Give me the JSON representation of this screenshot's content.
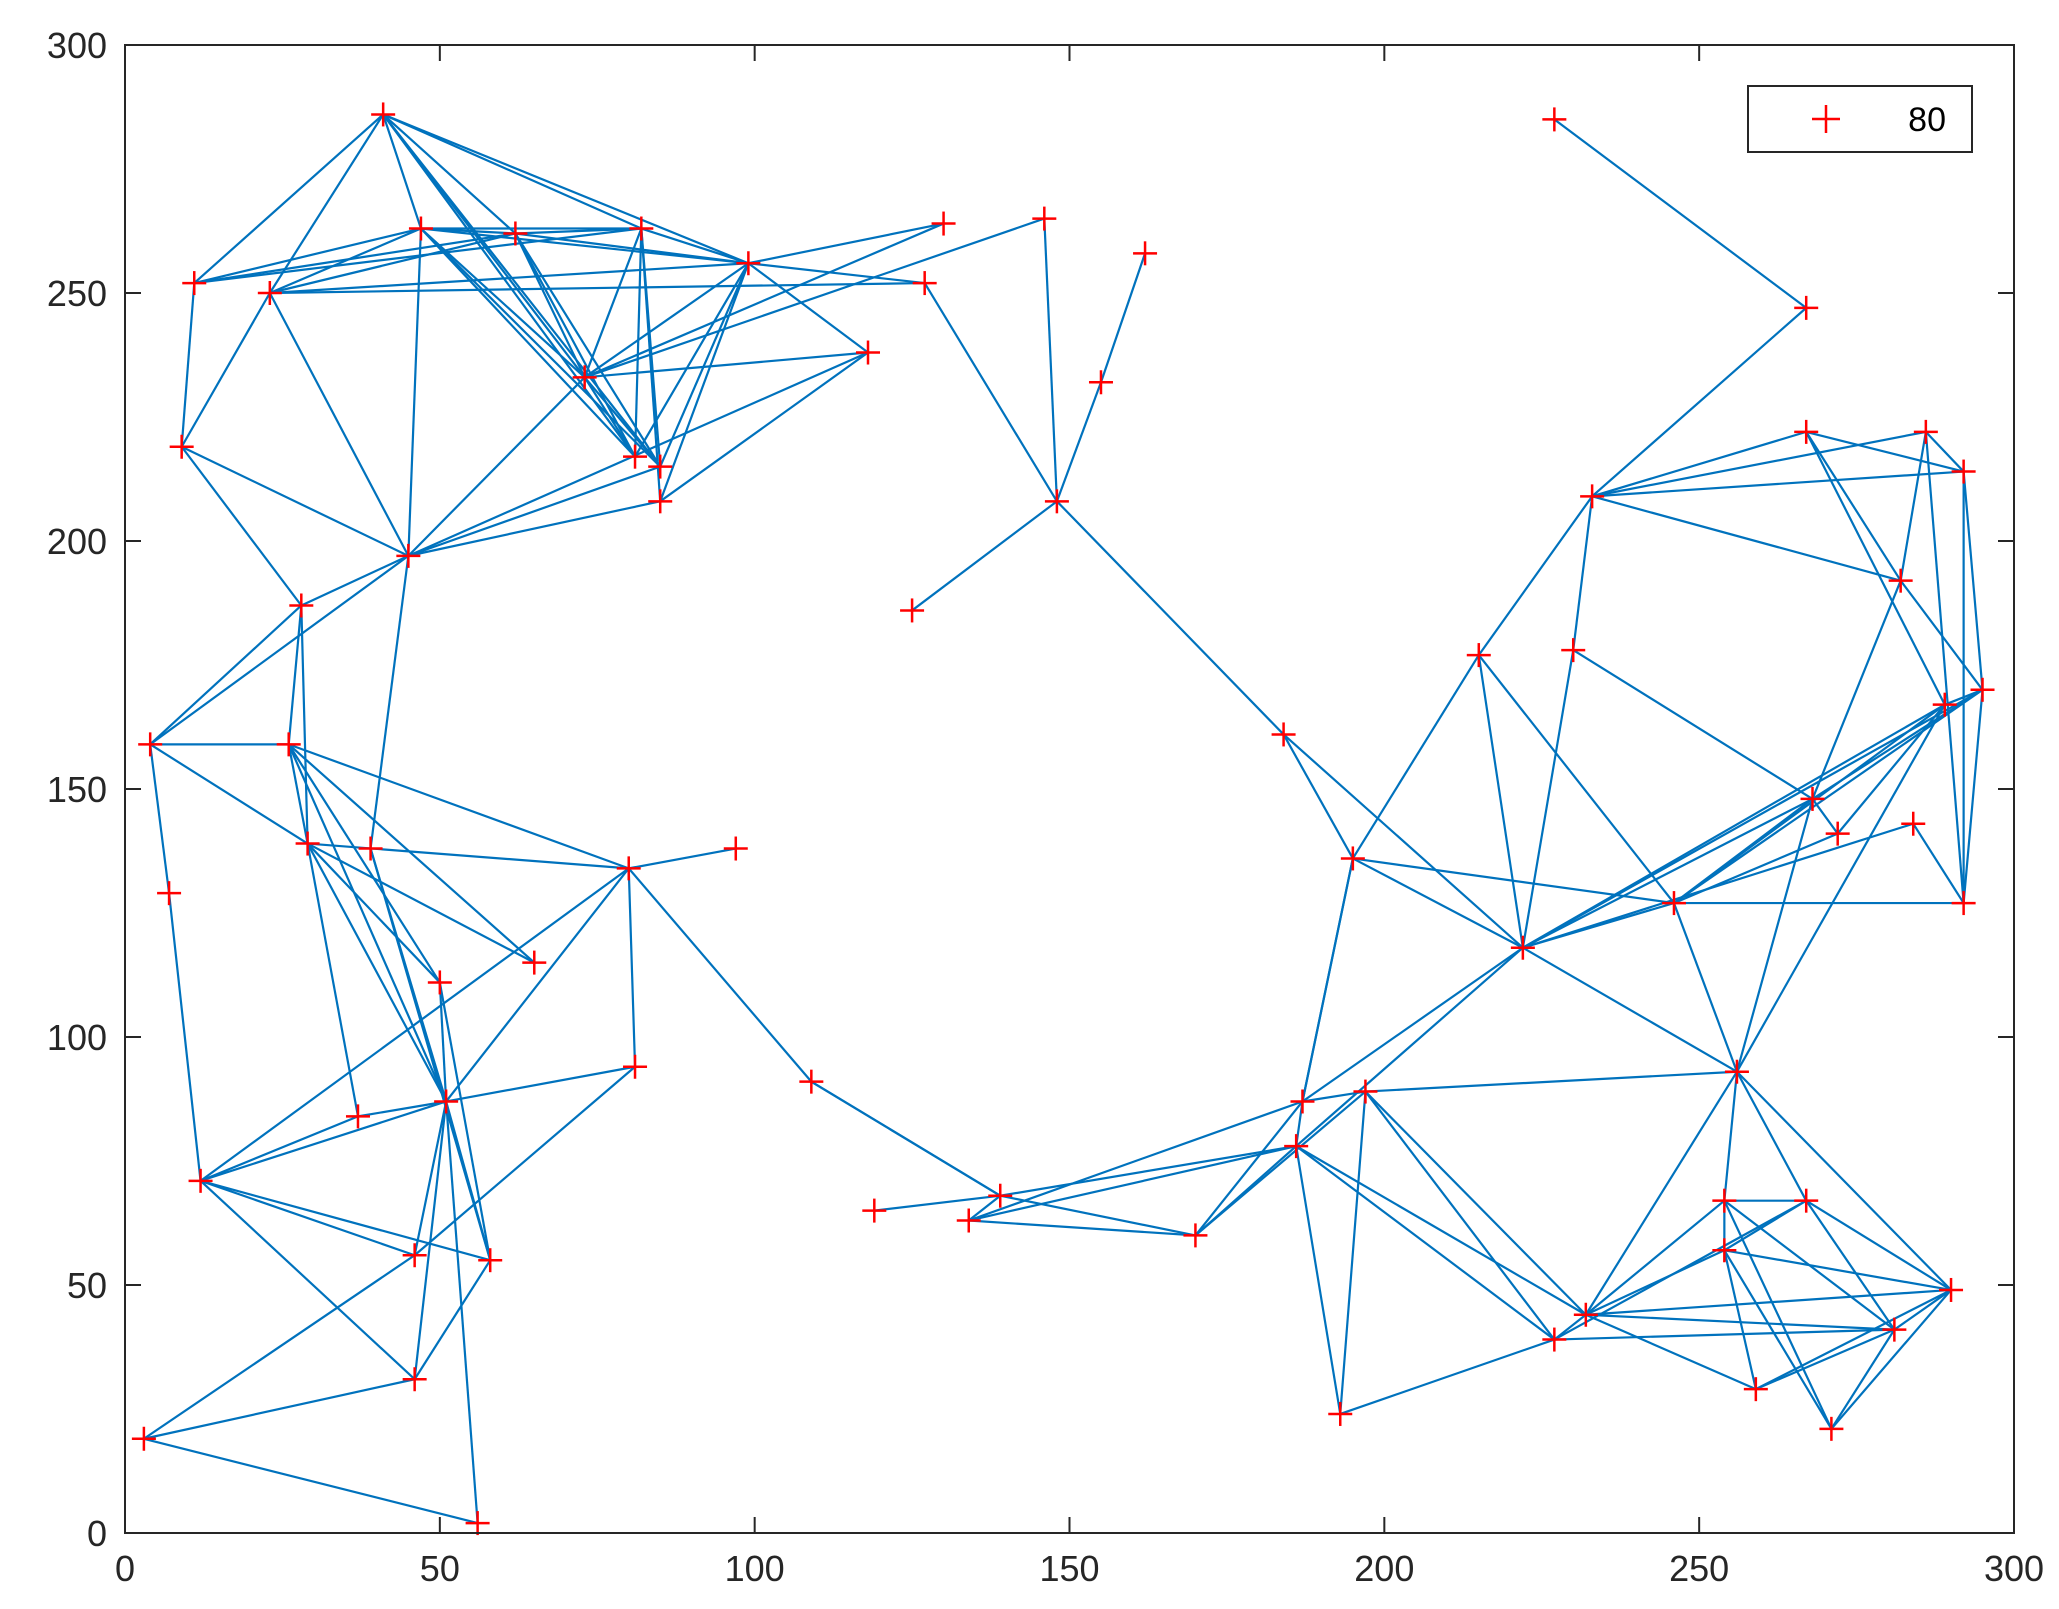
{
  "chart_data": {
    "type": "scatter",
    "title": "",
    "xlabel": "",
    "ylabel": "",
    "xlim": [
      0,
      300
    ],
    "ylim": [
      0,
      300
    ],
    "xticks": [
      0,
      50,
      100,
      150,
      200,
      250,
      300
    ],
    "yticks": [
      0,
      50,
      100,
      150,
      200,
      250,
      300
    ],
    "grid": false,
    "legend": {
      "placement": "top-right",
      "entries": [
        "80"
      ]
    },
    "colors": {
      "marker": "#ff0000",
      "edge": "#0072bd",
      "axis": "#262626"
    },
    "points": [
      [
        41,
        286
      ],
      [
        47,
        263
      ],
      [
        62,
        262
      ],
      [
        82,
        263
      ],
      [
        11,
        252
      ],
      [
        23,
        250
      ],
      [
        99,
        256
      ],
      [
        130,
        264
      ],
      [
        146,
        265
      ],
      [
        127,
        252
      ],
      [
        162,
        258
      ],
      [
        118,
        238
      ],
      [
        73,
        233
      ],
      [
        155,
        232
      ],
      [
        9,
        219
      ],
      [
        81,
        217
      ],
      [
        85,
        215
      ],
      [
        85,
        208
      ],
      [
        148,
        208
      ],
      [
        45,
        197
      ],
      [
        28,
        187
      ],
      [
        125,
        186
      ],
      [
        4,
        159
      ],
      [
        26,
        159
      ],
      [
        29,
        139
      ],
      [
        39,
        138
      ],
      [
        80,
        134
      ],
      [
        97,
        138
      ],
      [
        7,
        129
      ],
      [
        65,
        115
      ],
      [
        50,
        111
      ],
      [
        81,
        94
      ],
      [
        109,
        91
      ],
      [
        51,
        87
      ],
      [
        37,
        84
      ],
      [
        12,
        71
      ],
      [
        46,
        56
      ],
      [
        58,
        55
      ],
      [
        46,
        31
      ],
      [
        3,
        19
      ],
      [
        56,
        2
      ],
      [
        119,
        65
      ],
      [
        134,
        63
      ],
      [
        139,
        68
      ],
      [
        170,
        60
      ],
      [
        184,
        161
      ],
      [
        195,
        136
      ],
      [
        215,
        177
      ],
      [
        230,
        178
      ],
      [
        222,
        118
      ],
      [
        227,
        285
      ],
      [
        267,
        247
      ],
      [
        233,
        209
      ],
      [
        267,
        222
      ],
      [
        286,
        222
      ],
      [
        292,
        214
      ],
      [
        282,
        192
      ],
      [
        295,
        170
      ],
      [
        289,
        167
      ],
      [
        268,
        148
      ],
      [
        272,
        141
      ],
      [
        284,
        143
      ],
      [
        246,
        127
      ],
      [
        292,
        127
      ],
      [
        256,
        93
      ],
      [
        197,
        89
      ],
      [
        187,
        87
      ],
      [
        186,
        78
      ],
      [
        193,
        24
      ],
      [
        227,
        39
      ],
      [
        232,
        44
      ],
      [
        254,
        67
      ],
      [
        267,
        67
      ],
      [
        254,
        57
      ],
      [
        259,
        29
      ],
      [
        281,
        41
      ],
      [
        290,
        49
      ],
      [
        271,
        21
      ]
    ],
    "edges": [
      [
        0,
        4
      ],
      [
        0,
        5
      ],
      [
        0,
        1
      ],
      [
        0,
        2
      ],
      [
        0,
        3
      ],
      [
        0,
        6
      ],
      [
        0,
        12
      ],
      [
        0,
        16
      ],
      [
        0,
        15
      ],
      [
        4,
        1
      ],
      [
        4,
        2
      ],
      [
        4,
        3
      ],
      [
        4,
        14
      ],
      [
        5,
        1
      ],
      [
        5,
        2
      ],
      [
        5,
        6
      ],
      [
        5,
        14
      ],
      [
        5,
        19
      ],
      [
        5,
        9
      ],
      [
        1,
        2
      ],
      [
        1,
        3
      ],
      [
        1,
        6
      ],
      [
        1,
        12
      ],
      [
        1,
        15
      ],
      [
        1,
        16
      ],
      [
        1,
        19
      ],
      [
        2,
        3
      ],
      [
        2,
        6
      ],
      [
        2,
        12
      ],
      [
        2,
        16
      ],
      [
        2,
        15
      ],
      [
        3,
        6
      ],
      [
        3,
        12
      ],
      [
        3,
        15
      ],
      [
        3,
        16
      ],
      [
        3,
        17
      ],
      [
        6,
        7
      ],
      [
        6,
        9
      ],
      [
        6,
        11
      ],
      [
        6,
        12
      ],
      [
        6,
        15
      ],
      [
        6,
        16
      ],
      [
        6,
        17
      ],
      [
        7,
        12
      ],
      [
        8,
        12
      ],
      [
        9,
        18
      ],
      [
        11,
        12
      ],
      [
        11,
        17
      ],
      [
        8,
        18
      ],
      [
        10,
        13
      ],
      [
        13,
        18
      ],
      [
        12,
        15
      ],
      [
        12,
        16
      ],
      [
        14,
        19
      ],
      [
        14,
        20
      ],
      [
        19,
        22
      ],
      [
        19,
        20
      ],
      [
        19,
        25
      ],
      [
        19,
        17
      ],
      [
        19,
        16
      ],
      [
        19,
        12
      ],
      [
        19,
        11
      ],
      [
        20,
        22
      ],
      [
        20,
        23
      ],
      [
        20,
        24
      ],
      [
        22,
        23
      ],
      [
        22,
        24
      ],
      [
        22,
        28
      ],
      [
        23,
        24
      ],
      [
        23,
        26
      ],
      [
        23,
        29
      ],
      [
        23,
        30
      ],
      [
        23,
        33
      ],
      [
        24,
        26
      ],
      [
        24,
        29
      ],
      [
        24,
        30
      ],
      [
        24,
        33
      ],
      [
        24,
        34
      ],
      [
        25,
        33
      ],
      [
        25,
        37
      ],
      [
        26,
        27
      ],
      [
        26,
        31
      ],
      [
        26,
        32
      ],
      [
        26,
        33
      ],
      [
        26,
        35
      ],
      [
        28,
        35
      ],
      [
        30,
        33
      ],
      [
        30,
        37
      ],
      [
        31,
        33
      ],
      [
        31,
        36
      ],
      [
        32,
        43
      ],
      [
        33,
        34
      ],
      [
        33,
        35
      ],
      [
        33,
        36
      ],
      [
        33,
        37
      ],
      [
        33,
        38
      ],
      [
        33,
        40
      ],
      [
        35,
        36
      ],
      [
        35,
        37
      ],
      [
        35,
        38
      ],
      [
        35,
        34
      ],
      [
        37,
        38
      ],
      [
        36,
        39
      ],
      [
        38,
        39
      ],
      [
        39,
        40
      ],
      [
        41,
        43
      ],
      [
        42,
        43
      ],
      [
        42,
        44
      ],
      [
        42,
        66
      ],
      [
        42,
        67
      ],
      [
        43,
        44
      ],
      [
        43,
        67
      ],
      [
        44,
        66
      ],
      [
        44,
        65
      ],
      [
        44,
        67
      ],
      [
        18,
        45
      ],
      [
        18,
        21
      ],
      [
        45,
        46
      ],
      [
        45,
        49
      ],
      [
        46,
        47
      ],
      [
        46,
        49
      ],
      [
        46,
        62
      ],
      [
        46,
        66
      ],
      [
        47,
        49
      ],
      [
        47,
        52
      ],
      [
        47,
        62
      ],
      [
        48,
        49
      ],
      [
        48,
        52
      ],
      [
        48,
        59
      ],
      [
        49,
        59
      ],
      [
        49,
        61
      ],
      [
        49,
        57
      ],
      [
        49,
        62
      ],
      [
        49,
        64
      ],
      [
        49,
        66
      ],
      [
        49,
        67
      ],
      [
        49,
        58
      ],
      [
        50,
        51
      ],
      [
        51,
        52
      ],
      [
        52,
        53
      ],
      [
        52,
        54
      ],
      [
        52,
        55
      ],
      [
        52,
        56
      ],
      [
        53,
        55
      ],
      [
        53,
        56
      ],
      [
        53,
        58
      ],
      [
        54,
        55
      ],
      [
        54,
        56
      ],
      [
        54,
        63
      ],
      [
        55,
        57
      ],
      [
        55,
        63
      ],
      [
        56,
        57
      ],
      [
        56,
        59
      ],
      [
        57,
        59
      ],
      [
        57,
        58
      ],
      [
        57,
        62
      ],
      [
        57,
        63
      ],
      [
        58,
        60
      ],
      [
        58,
        62
      ],
      [
        59,
        62
      ],
      [
        59,
        60
      ],
      [
        59,
        64
      ],
      [
        60,
        62
      ],
      [
        61,
        63
      ],
      [
        62,
        63
      ],
      [
        62,
        64
      ],
      [
        58,
        64
      ],
      [
        64,
        65
      ],
      [
        64,
        70
      ],
      [
        64,
        71
      ],
      [
        64,
        72
      ],
      [
        64,
        76
      ],
      [
        65,
        68
      ],
      [
        65,
        70
      ],
      [
        65,
        69
      ],
      [
        66,
        67
      ],
      [
        66,
        46
      ],
      [
        67,
        68
      ],
      [
        67,
        69
      ],
      [
        67,
        70
      ],
      [
        68,
        69
      ],
      [
        69,
        70
      ],
      [
        69,
        72
      ],
      [
        69,
        75
      ],
      [
        70,
        71
      ],
      [
        70,
        73
      ],
      [
        70,
        74
      ],
      [
        70,
        75
      ],
      [
        70,
        76
      ],
      [
        71,
        72
      ],
      [
        71,
        73
      ],
      [
        71,
        75
      ],
      [
        71,
        77
      ],
      [
        72,
        73
      ],
      [
        72,
        75
      ],
      [
        72,
        76
      ],
      [
        73,
        74
      ],
      [
        73,
        76
      ],
      [
        73,
        77
      ],
      [
        74,
        75
      ],
      [
        74,
        76
      ],
      [
        75,
        76
      ],
      [
        75,
        77
      ],
      [
        76,
        77
      ],
      [
        43,
        32
      ],
      [
        66,
        65
      ]
    ]
  }
}
